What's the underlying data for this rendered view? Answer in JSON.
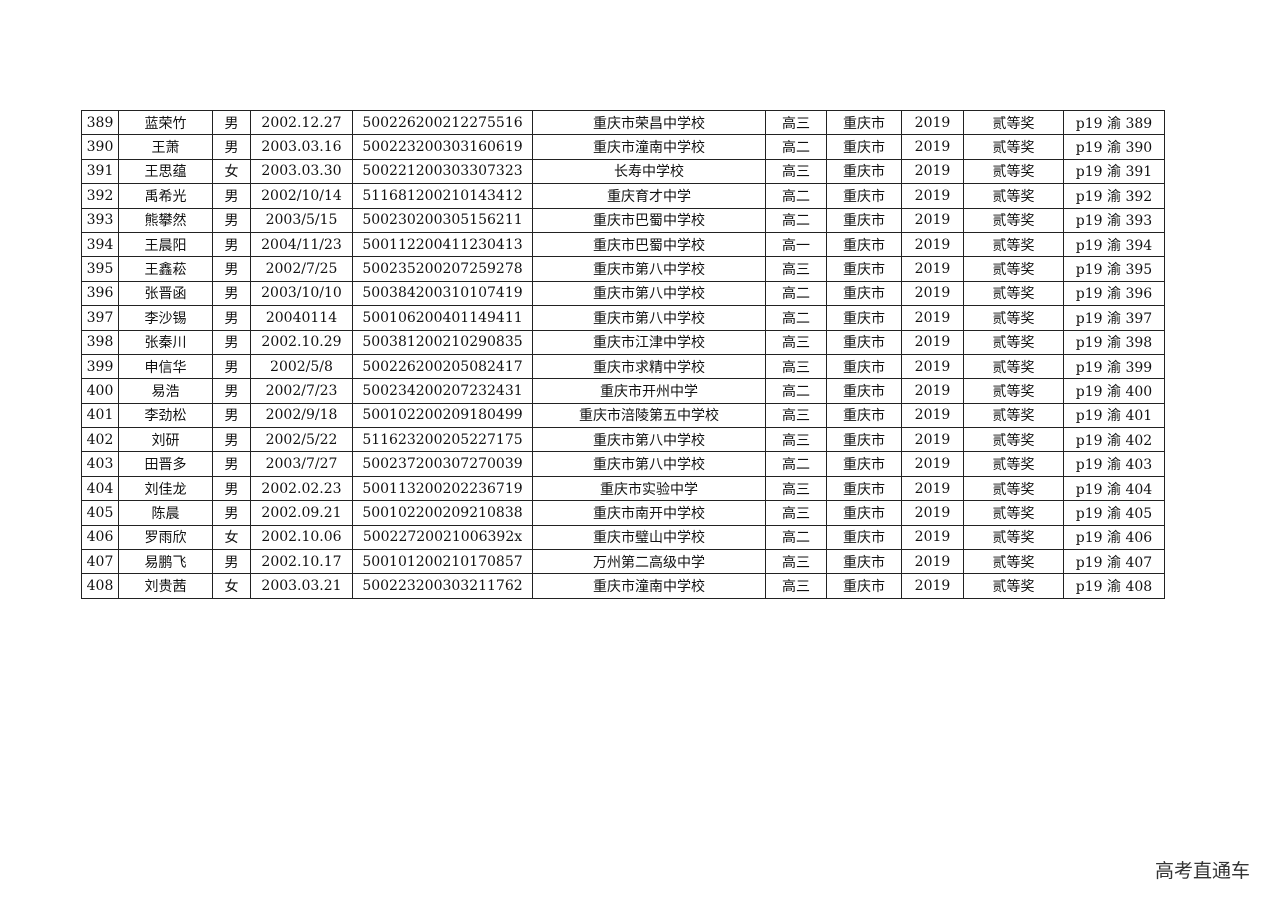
{
  "rows": [
    [
      "389",
      "蓝荣竹",
      "男",
      "2002.12.27",
      "500226200212275516",
      "重庆市荣昌中学校",
      "高三",
      "重庆市",
      "2019",
      "贰等奖",
      "p19 渝 389"
    ],
    [
      "390",
      "王萧",
      "男",
      "2003.03.16",
      "500223200303160619",
      "重庆市潼南中学校",
      "高二",
      "重庆市",
      "2019",
      "贰等奖",
      "p19 渝 390"
    ],
    [
      "391",
      "王思蕴",
      "女",
      "2003.03.30",
      "500221200303307323",
      "长寿中学校",
      "高三",
      "重庆市",
      "2019",
      "贰等奖",
      "p19 渝 391"
    ],
    [
      "392",
      "禹希光",
      "男",
      "2002/10/14",
      "511681200210143412",
      "重庆育才中学",
      "高二",
      "重庆市",
      "2019",
      "贰等奖",
      "p19 渝 392"
    ],
    [
      "393",
      "熊攀然",
      "男",
      "2003/5/15",
      "500230200305156211",
      "重庆市巴蜀中学校",
      "高二",
      "重庆市",
      "2019",
      "贰等奖",
      "p19 渝 393"
    ],
    [
      "394",
      "王晨阳",
      "男",
      "2004/11/23",
      "500112200411230413",
      "重庆市巴蜀中学校",
      "高一",
      "重庆市",
      "2019",
      "贰等奖",
      "p19 渝 394"
    ],
    [
      "395",
      "王鑫菘",
      "男",
      "2002/7/25",
      "500235200207259278",
      "重庆市第八中学校",
      "高三",
      "重庆市",
      "2019",
      "贰等奖",
      "p19 渝 395"
    ],
    [
      "396",
      "张晋函",
      "男",
      "2003/10/10",
      "500384200310107419",
      "重庆市第八中学校",
      "高二",
      "重庆市",
      "2019",
      "贰等奖",
      "p19 渝 396"
    ],
    [
      "397",
      "李沙锡",
      "男",
      "20040114",
      "500106200401149411",
      "重庆市第八中学校",
      "高二",
      "重庆市",
      "2019",
      "贰等奖",
      "p19 渝 397"
    ],
    [
      "398",
      "张秦川",
      "男",
      "2002.10.29",
      "500381200210290835",
      "重庆市江津中学校",
      "高三",
      "重庆市",
      "2019",
      "贰等奖",
      "p19 渝 398"
    ],
    [
      "399",
      "申信华",
      "男",
      "2002/5/8",
      "500226200205082417",
      "重庆市求精中学校",
      "高三",
      "重庆市",
      "2019",
      "贰等奖",
      "p19 渝 399"
    ],
    [
      "400",
      "易浩",
      "男",
      "2002/7/23",
      "500234200207232431",
      "重庆市开州中学",
      "高二",
      "重庆市",
      "2019",
      "贰等奖",
      "p19 渝 400"
    ],
    [
      "401",
      "李劲松",
      "男",
      "2002/9/18",
      "500102200209180499",
      "重庆市涪陵第五中学校",
      "高三",
      "重庆市",
      "2019",
      "贰等奖",
      "p19 渝 401"
    ],
    [
      "402",
      "刘研",
      "男",
      "2002/5/22",
      "511623200205227175",
      "重庆市第八中学校",
      "高三",
      "重庆市",
      "2019",
      "贰等奖",
      "p19 渝 402"
    ],
    [
      "403",
      "田晋多",
      "男",
      "2003/7/27",
      "500237200307270039",
      "重庆市第八中学校",
      "高二",
      "重庆市",
      "2019",
      "贰等奖",
      "p19 渝 403"
    ],
    [
      "404",
      "刘佳龙",
      "男",
      "2002.02.23",
      "500113200202236719",
      "重庆市实验中学",
      "高三",
      "重庆市",
      "2019",
      "贰等奖",
      "p19 渝 404"
    ],
    [
      "405",
      "陈晨",
      "男",
      "2002.09.21",
      "500102200209210838",
      "重庆市南开中学校",
      "高三",
      "重庆市",
      "2019",
      "贰等奖",
      "p19 渝 405"
    ],
    [
      "406",
      "罗雨欣",
      "女",
      "2002.10.06",
      "50022720021006392x",
      "重庆市璧山中学校",
      "高二",
      "重庆市",
      "2019",
      "贰等奖",
      "p19 渝 406"
    ],
    [
      "407",
      "易鹏飞",
      "男",
      "2002.10.17",
      "500101200210170857",
      "万州第二高级中学",
      "高三",
      "重庆市",
      "2019",
      "贰等奖",
      "p19 渝 407"
    ],
    [
      "408",
      "刘贵茜",
      "女",
      "2003.03.21",
      "500223200303211762",
      "重庆市潼南中学校",
      "高三",
      "重庆市",
      "2019",
      "贰等奖",
      "p19 渝 408"
    ]
  ],
  "watermark": "高考直通车"
}
